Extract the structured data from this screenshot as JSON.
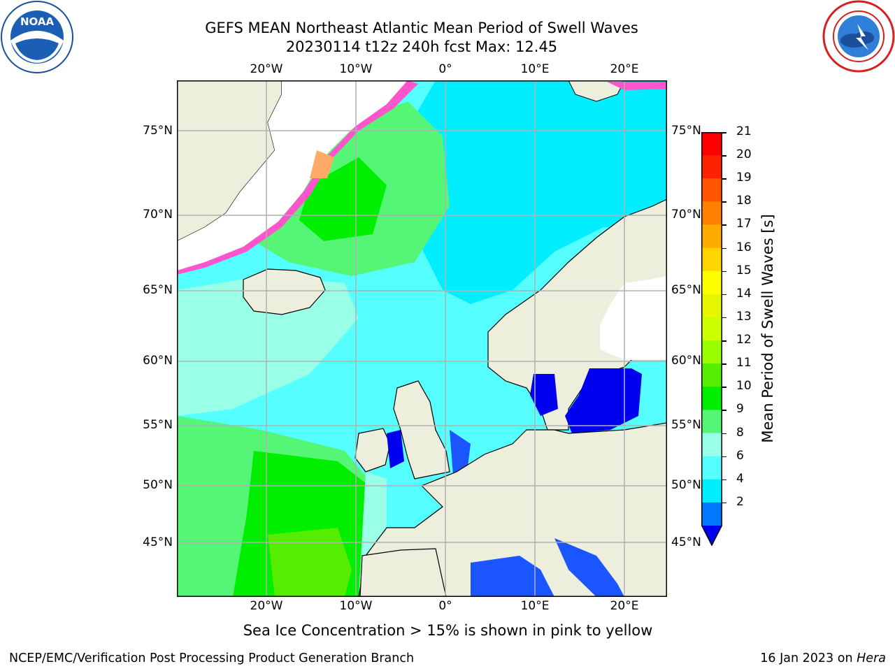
{
  "header": {
    "title_line1": "GEFS MEAN Northeast Atlantic Mean Period of Swell Waves",
    "title_line2": "20230114 t12z 240h fcst   Max: 12.45"
  },
  "logos": {
    "left": {
      "name": "NOAA",
      "text": "NOAA",
      "ring_text": "NATIONAL OCEANIC AND ATMOSPHERIC ADMINISTRATION · U.S. DEPARTMENT OF COMMERCE"
    },
    "right": {
      "name": "National Weather Service",
      "ring_text": "NATIONAL WEATHER SERVICE"
    }
  },
  "map": {
    "lat_labels": [
      "75°N",
      "70°N",
      "65°N",
      "60°N",
      "55°N",
      "50°N",
      "45°N"
    ],
    "lon_labels": [
      "20°W",
      "10°W",
      "0°",
      "10°E",
      "20°E"
    ],
    "colors": {
      "land": "#eeeedd",
      "ice_free": "#ffffff",
      "grid": "#b0b0b0",
      "coast": "#000000"
    }
  },
  "colorbar": {
    "label": "Mean Period of Swell Waves [s]",
    "ticks": [
      "21",
      "20",
      "19",
      "18",
      "17",
      "16",
      "15",
      "14",
      "13",
      "12",
      "11",
      "10",
      "9",
      "8",
      "6",
      "4",
      "2"
    ],
    "bins_top_to_bottom": [
      "#ff0000",
      "#ff2200",
      "#ff5500",
      "#ff8000",
      "#ffaa00",
      "#ffd500",
      "#ffff00",
      "#e6f500",
      "#ccff00",
      "#99ff00",
      "#55ee00",
      "#00ee00",
      "#55f575",
      "#99ffe6",
      "#55ffff",
      "#00eeff",
      "#0077ff"
    ],
    "under_color": "#0000ee"
  },
  "footer": {
    "ice_note": "Sea Ice Concentration > 15% is shown in pink to yellow",
    "left": "NCEP/EMC/Verification Post Processing Product Generation Branch",
    "right_date": "16 Jan 2023 on",
    "right_host": "Hera"
  }
}
